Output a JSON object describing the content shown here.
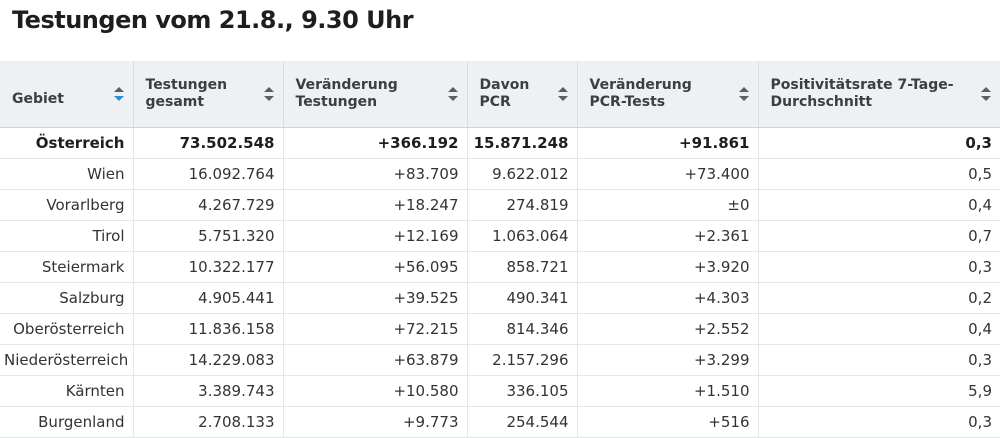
{
  "title": "Testungen vom 21.8., 9.30 Uhr",
  "columns": [
    {
      "label": "Gebiet",
      "sort": "active"
    },
    {
      "label": "Testungen gesamt",
      "sort": "both"
    },
    {
      "label": "Veränderung Testungen",
      "sort": "both"
    },
    {
      "label": "Davon PCR",
      "sort": "both"
    },
    {
      "label": "Veränderung PCR-Tests",
      "sort": "both"
    },
    {
      "label": "Positivitätsrate 7-Tage-Durchschnitt",
      "sort": "both"
    }
  ],
  "rows": [
    {
      "gebiet": "Österreich",
      "testungen": "73.502.548",
      "veraenderung": "+366.192",
      "pcr": "15.871.248",
      "veraenderung_pcr": "+91.861",
      "positivitaet": "0,3"
    },
    {
      "gebiet": "Wien",
      "testungen": "16.092.764",
      "veraenderung": "+83.709",
      "pcr": "9.622.012",
      "veraenderung_pcr": "+73.400",
      "positivitaet": "0,5"
    },
    {
      "gebiet": "Vorarlberg",
      "testungen": "4.267.729",
      "veraenderung": "+18.247",
      "pcr": "274.819",
      "veraenderung_pcr": "±0",
      "positivitaet": "0,4"
    },
    {
      "gebiet": "Tirol",
      "testungen": "5.751.320",
      "veraenderung": "+12.169",
      "pcr": "1.063.064",
      "veraenderung_pcr": "+2.361",
      "positivitaet": "0,7"
    },
    {
      "gebiet": "Steiermark",
      "testungen": "10.322.177",
      "veraenderung": "+56.095",
      "pcr": "858.721",
      "veraenderung_pcr": "+3.920",
      "positivitaet": "0,3"
    },
    {
      "gebiet": "Salzburg",
      "testungen": "4.905.441",
      "veraenderung": "+39.525",
      "pcr": "490.341",
      "veraenderung_pcr": "+4.303",
      "positivitaet": "0,2"
    },
    {
      "gebiet": "Oberösterreich",
      "testungen": "11.836.158",
      "veraenderung": "+72.215",
      "pcr": "814.346",
      "veraenderung_pcr": "+2.552",
      "positivitaet": "0,4"
    },
    {
      "gebiet": "Niederösterreich",
      "testungen": "14.229.083",
      "veraenderung": "+63.879",
      "pcr": "2.157.296",
      "veraenderung_pcr": "+3.299",
      "positivitaet": "0,3"
    },
    {
      "gebiet": "Kärnten",
      "testungen": "3.389.743",
      "veraenderung": "+10.580",
      "pcr": "336.105",
      "veraenderung_pcr": "+1.510",
      "positivitaet": "5,9"
    },
    {
      "gebiet": "Burgenland",
      "testungen": "2.708.133",
      "veraenderung": "+9.773",
      "pcr": "254.544",
      "veraenderung_pcr": "+516",
      "positivitaet": "0,3"
    }
  ],
  "colors": {
    "header_bg": "#eef0f3",
    "sort_active": "#2a8fd8",
    "sort_inactive": "#5a5f66"
  }
}
